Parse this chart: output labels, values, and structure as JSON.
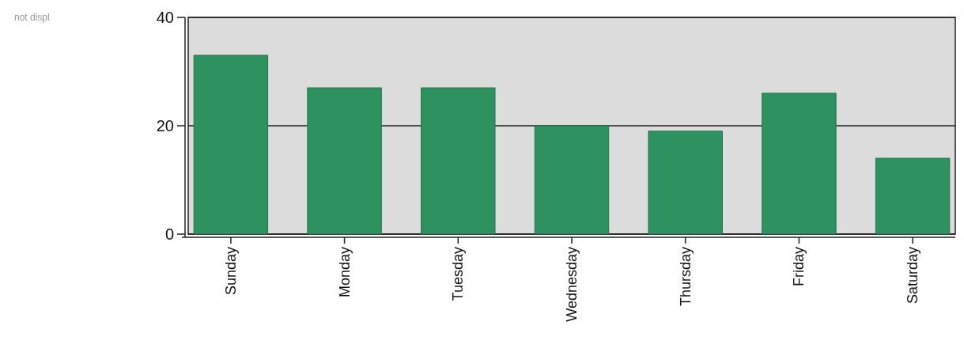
{
  "chart_data": {
    "type": "bar",
    "categories": [
      "Sunday",
      "Monday",
      "Tuesday",
      "Wednesday",
      "Thursday",
      "Friday",
      "Saturday"
    ],
    "values": [
      33,
      27,
      27,
      20,
      19,
      26,
      14
    ],
    "color": "#2e9160",
    "ylim": [
      0,
      40
    ],
    "yticks": [
      0,
      20,
      40
    ],
    "grid": "y",
    "annotations": [
      "not displ"
    ]
  }
}
